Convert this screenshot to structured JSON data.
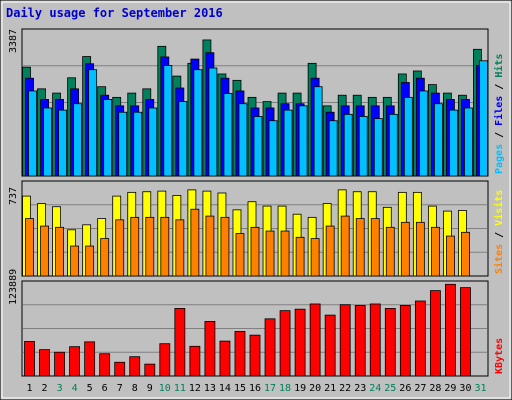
{
  "title": "Daily usage for September 2016",
  "colors": {
    "background": "#c0c0c0",
    "hits": "#00805c",
    "files": "#0000ff",
    "pages": "#00c0ff",
    "visits": "#ffff00",
    "sites": "#ff8000",
    "kbytes": "#ff0000",
    "title": "#0000cc",
    "weekend_day": "#00805c"
  },
  "right_labels": {
    "top": [
      {
        "text": "Pages",
        "color": "#00c0ff"
      },
      {
        "text": " / ",
        "color": "#000000"
      },
      {
        "text": "Files",
        "color": "#0000ff"
      },
      {
        "text": " / ",
        "color": "#000000"
      },
      {
        "text": "Hits",
        "color": "#00805c"
      }
    ],
    "middle": [
      {
        "text": "Sites",
        "color": "#ff8000"
      },
      {
        "text": " / ",
        "color": "#000000"
      },
      {
        "text": "Visits",
        "color": "#ffff00"
      }
    ],
    "bottom": [
      {
        "text": "KBytes",
        "color": "#ff0000"
      }
    ]
  },
  "chart_data": [
    {
      "type": "bar",
      "panel": "hits-files-pages",
      "ymax_label": "3387",
      "ylim": [
        0,
        3387
      ],
      "categories": [
        "1",
        "2",
        "3",
        "4",
        "5",
        "6",
        "7",
        "8",
        "9",
        "10",
        "11",
        "12",
        "13",
        "14",
        "15",
        "16",
        "17",
        "18",
        "19",
        "20",
        "21",
        "22",
        "23",
        "24",
        "25",
        "26",
        "27",
        "28",
        "29",
        "30",
        "31"
      ],
      "weekend_days": [
        "3",
        "4",
        "10",
        "11",
        "17",
        "18",
        "24",
        "25",
        "31"
      ],
      "series": [
        {
          "name": "Hits",
          "values": [
            2560,
            2050,
            1950,
            2310,
            2810,
            2100,
            1850,
            1950,
            2050,
            3050,
            2350,
            2650,
            3200,
            2400,
            2250,
            1850,
            1750,
            1950,
            1950,
            2650,
            1650,
            1900,
            1900,
            1850,
            1850,
            2400,
            2470,
            2150,
            1950,
            1900,
            2980
          ]
        },
        {
          "name": "Files",
          "values": [
            2300,
            1800,
            1800,
            2050,
            2640,
            1900,
            1650,
            1650,
            1800,
            2800,
            2070,
            2750,
            2900,
            2300,
            2000,
            1600,
            1600,
            1700,
            1700,
            2300,
            1500,
            1650,
            1650,
            1650,
            1650,
            2200,
            2300,
            1950,
            1800,
            1800,
            2600
          ]
        },
        {
          "name": "Pages",
          "values": [
            2000,
            1600,
            1550,
            1700,
            2500,
            1800,
            1500,
            1500,
            1600,
            2600,
            1750,
            2500,
            2540,
            1940,
            1700,
            1400,
            1300,
            1550,
            1650,
            2100,
            1300,
            1450,
            1400,
            1350,
            1450,
            1850,
            2000,
            1700,
            1550,
            1600,
            2710
          ]
        }
      ]
    },
    {
      "type": "bar",
      "panel": "visits-sites",
      "ymax_label": "737",
      "ylim": [
        0,
        737
      ],
      "categories": [
        "1",
        "2",
        "3",
        "4",
        "5",
        "6",
        "7",
        "8",
        "9",
        "10",
        "11",
        "12",
        "13",
        "14",
        "15",
        "16",
        "17",
        "18",
        "19",
        "20",
        "21",
        "22",
        "23",
        "24",
        "25",
        "26",
        "27",
        "28",
        "29",
        "30",
        "31"
      ],
      "series": [
        {
          "name": "Visits",
          "values": [
            640,
            580,
            555,
            370,
            410,
            460,
            640,
            670,
            675,
            680,
            645,
            690,
            680,
            665,
            530,
            595,
            560,
            560,
            495,
            470,
            580,
            690,
            675,
            675,
            550,
            670,
            670,
            560,
            520,
            525,
            0
          ]
        },
        {
          "name": "Sites",
          "values": [
            460,
            400,
            390,
            240,
            240,
            300,
            450,
            470,
            470,
            470,
            450,
            535,
            480,
            470,
            340,
            390,
            360,
            360,
            310,
            300,
            400,
            480,
            460,
            460,
            390,
            430,
            430,
            390,
            320,
            350,
            0
          ]
        }
      ]
    },
    {
      "type": "bar",
      "panel": "kbytes",
      "ymax_label": "123889",
      "ylim": [
        0,
        123889
      ],
      "categories": [
        "1",
        "2",
        "3",
        "4",
        "5",
        "6",
        "7",
        "8",
        "9",
        "10",
        "11",
        "12",
        "13",
        "14",
        "15",
        "16",
        "17",
        "18",
        "19",
        "20",
        "21",
        "22",
        "23",
        "24",
        "25",
        "26",
        "27",
        "28",
        "29",
        "30",
        "31"
      ],
      "series": [
        {
          "name": "KBytes",
          "values": [
            46500,
            35500,
            32000,
            39500,
            46000,
            30000,
            18500,
            26000,
            16000,
            43500,
            91000,
            40000,
            73500,
            47000,
            60000,
            55000,
            77000,
            88000,
            90000,
            97000,
            82000,
            96000,
            95000,
            97000,
            91000,
            95000,
            101000,
            115000,
            123500,
            119000,
            0
          ]
        }
      ]
    }
  ]
}
